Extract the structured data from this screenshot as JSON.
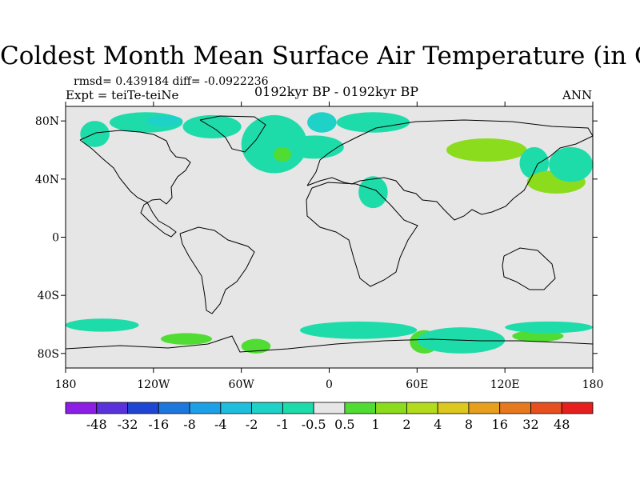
{
  "chart_data": {
    "type": "heatmap",
    "title": "Coldest Month Mean Surface Air Temperature (in C)",
    "stats": "rmsd= 0.439184  diff= -0.0922236",
    "experiment": "Expt = teiTe-teiNe",
    "period": "0192kyr BP - 0192kyr BP",
    "season": "ANN",
    "projection": "cylindrical equidistant",
    "xlim": [
      -180,
      180
    ],
    "ylim": [
      -90,
      90
    ],
    "x_ticks": [
      {
        "value": -180,
        "label": "180"
      },
      {
        "value": -120,
        "label": "120W"
      },
      {
        "value": -60,
        "label": "60W"
      },
      {
        "value": 0,
        "label": "0"
      },
      {
        "value": 60,
        "label": "60E"
      },
      {
        "value": 120,
        "label": "120E"
      },
      {
        "value": 180,
        "label": "180"
      }
    ],
    "y_ticks": [
      {
        "value": 80,
        "label": "80N"
      },
      {
        "value": 40,
        "label": "40N"
      },
      {
        "value": 0,
        "label": "0"
      },
      {
        "value": -40,
        "label": "40S"
      },
      {
        "value": -80,
        "label": "80S"
      }
    ],
    "colorbar": {
      "levels": [
        "-48",
        "-32",
        "-16",
        "-8",
        "-4",
        "-2",
        "-1",
        "-0.5",
        "0.5",
        "1",
        "2",
        "4",
        "8",
        "16",
        "32",
        "48"
      ],
      "colors": [
        "#8c1ee6",
        "#5a32dc",
        "#1e46d2",
        "#1e78dc",
        "#1ea0e6",
        "#1ebedc",
        "#1ed2c8",
        "#1edcaa",
        "#e6e6e6",
        "#50dc32",
        "#8cdc1e",
        "#b4dc1e",
        "#dcc81e",
        "#e6a01e",
        "#e6781e",
        "#e6501e",
        "#e61e1e"
      ]
    },
    "background_color": "#e6e6e6",
    "anomaly_regions": [
      {
        "value_range": [
          -1,
          -0.5
        ],
        "lon": [
          -170,
          -150
        ],
        "lat": [
          62,
          80
        ]
      },
      {
        "value_range": [
          -1,
          -0.5
        ],
        "lon": [
          -150,
          -100
        ],
        "lat": [
          72,
          86
        ]
      },
      {
        "value_range": [
          -1,
          -0.5
        ],
        "lon": [
          -100,
          -60
        ],
        "lat": [
          68,
          84
        ]
      },
      {
        "value_range": [
          -2,
          -1
        ],
        "lon": [
          -125,
          -100
        ],
        "lat": [
          76,
          84
        ]
      },
      {
        "value_range": [
          -1,
          -0.5
        ],
        "lon": [
          -60,
          -15
        ],
        "lat": [
          44,
          84
        ]
      },
      {
        "value_range": [
          -2,
          -1
        ],
        "lon": [
          -15,
          5
        ],
        "lat": [
          72,
          86
        ]
      },
      {
        "value_range": [
          -1,
          -0.5
        ],
        "lon": [
          5,
          55
        ],
        "lat": [
          72,
          86
        ]
      },
      {
        "value_range": [
          -1,
          -0.5
        ],
        "lon": [
          -30,
          10
        ],
        "lat": [
          54,
          70
        ]
      },
      {
        "value_range": [
          0.5,
          1
        ],
        "lon": [
          -38,
          -26
        ],
        "lat": [
          52,
          62
        ]
      },
      {
        "value_range": [
          -1,
          -0.5
        ],
        "lon": [
          20,
          40
        ],
        "lat": [
          20,
          42
        ]
      },
      {
        "value_range": [
          0.5,
          2
        ],
        "lon": [
          80,
          135
        ],
        "lat": [
          52,
          68
        ]
      },
      {
        "value_range": [
          -1,
          -0.5
        ],
        "lon": [
          130,
          150
        ],
        "lat": [
          40,
          62
        ]
      },
      {
        "value_range": [
          0.5,
          2
        ],
        "lon": [
          135,
          175
        ],
        "lat": [
          30,
          46
        ]
      },
      {
        "value_range": [
          -1,
          -0.5
        ],
        "lon": [
          150,
          180
        ],
        "lat": [
          38,
          62
        ]
      },
      {
        "value_range": [
          -1,
          -0.5
        ],
        "lon": [
          -180,
          -130
        ],
        "lat": [
          -65,
          -56
        ]
      },
      {
        "value_range": [
          -1,
          -0.5
        ],
        "lon": [
          -20,
          60
        ],
        "lat": [
          -70,
          -58
        ]
      },
      {
        "value_range": [
          0.5,
          1
        ],
        "lon": [
          -115,
          -80
        ],
        "lat": [
          -74,
          -66
        ]
      },
      {
        "value_range": [
          0.5,
          1
        ],
        "lon": [
          -60,
          -40
        ],
        "lat": [
          -80,
          -70
        ]
      },
      {
        "value_range": [
          0.5,
          1
        ],
        "lon": [
          55,
          75
        ],
        "lat": [
          -80,
          -64
        ]
      },
      {
        "value_range": [
          -1,
          -0.5
        ],
        "lon": [
          60,
          120
        ],
        "lat": [
          -80,
          -62
        ]
      },
      {
        "value_range": [
          0.5,
          1
        ],
        "lon": [
          125,
          160
        ],
        "lat": [
          -72,
          -64
        ]
      },
      {
        "value_range": [
          -1,
          -0.5
        ],
        "lon": [
          120,
          180
        ],
        "lat": [
          -66,
          -58
        ]
      }
    ]
  }
}
